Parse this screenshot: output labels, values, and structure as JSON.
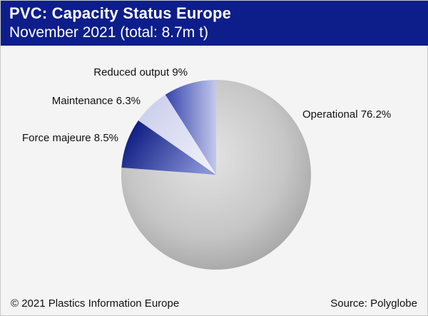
{
  "header": {
    "title": "PVC: Capacity Status Europe",
    "subtitle": "November 2021 (total:  8.7m t)"
  },
  "footer": {
    "copyright": "© 2021 Plastics Information Europe",
    "source": "Source: Polyglobe"
  },
  "colors": {
    "header_bg": "#0d1e8a",
    "operational": "#bdbdbd",
    "force_majeure": "#0f1f8f",
    "maintenance": "#e0e3f3",
    "reduced_output": "#5e6cc2"
  },
  "chart_data": {
    "type": "pie",
    "title": "PVC: Capacity Status Europe",
    "subtitle": "November 2021 (total:  8.7m t)",
    "unit": "%",
    "slices": [
      {
        "name": "Operational",
        "value": 76.2,
        "label": "Operational 76.2%"
      },
      {
        "name": "Force majeure",
        "value": 8.5,
        "label": "Force majeure 8.5%"
      },
      {
        "name": "Maintenance",
        "value": 6.3,
        "label": "Maintenance 6.3%"
      },
      {
        "name": "Reduced output",
        "value": 9,
        "label": "Reduced output 9%"
      }
    ]
  }
}
